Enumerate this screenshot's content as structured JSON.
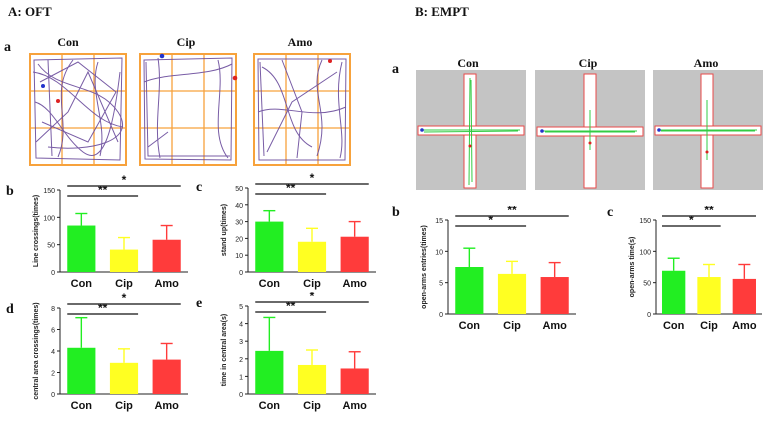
{
  "sections": {
    "oft_title": "A: OFT",
    "empt_title": "B: EMPT"
  },
  "panel_labels": {
    "oft_a": "a",
    "oft_b": "b",
    "oft_c": "c",
    "oft_d": "d",
    "oft_e": "e",
    "empt_a": "a",
    "empt_b": "b",
    "empt_c": "c"
  },
  "groups": [
    "Con",
    "Cip",
    "Amo"
  ],
  "colors": {
    "con": "#22ee22",
    "cip": "#ffff22",
    "amo": "#ff3b3b",
    "grid": "#f7a23c",
    "track": "#6a4b9c",
    "maze_bg": "#c4c4c4",
    "maze_path": "#33cc44",
    "maze_arm": "#e84a4a"
  },
  "chart_data": [
    {
      "id": "oft_b",
      "type": "bar",
      "ylabel": "Line crossings(times)",
      "categories": [
        "Con",
        "Cip",
        "Amo"
      ],
      "values": [
        85,
        41,
        59
      ],
      "errors": [
        22,
        22,
        26
      ],
      "ylim": [
        0,
        150
      ],
      "yticks": [
        "0",
        "50",
        "100",
        "150"
      ],
      "sig": [
        {
          "from": 0,
          "to": 1,
          "label": "**"
        },
        {
          "from": 0,
          "to": 2,
          "label": "*"
        }
      ]
    },
    {
      "id": "oft_c",
      "type": "bar",
      "ylabel": "stand up(times)",
      "categories": [
        "Con",
        "Cip",
        "Amo"
      ],
      "values": [
        30,
        18,
        21
      ],
      "errors": [
        6.5,
        8,
        9
      ],
      "ylim": [
        0,
        50
      ],
      "yticks": [
        "0",
        "10",
        "20",
        "30",
        "40",
        "50"
      ],
      "sig": [
        {
          "from": 0,
          "to": 1,
          "label": "**"
        },
        {
          "from": 0,
          "to": 2,
          "label": "*"
        }
      ]
    },
    {
      "id": "oft_d",
      "type": "bar",
      "ylabel": "central area crossings(times)",
      "categories": [
        "Con",
        "Cip",
        "Amo"
      ],
      "values": [
        4.3,
        2.9,
        3.2
      ],
      "errors": [
        2.8,
        1.3,
        1.5
      ],
      "ylim": [
        0,
        8
      ],
      "yticks": [
        "0",
        "2",
        "4",
        "6",
        "8"
      ],
      "sig": [
        {
          "from": 0,
          "to": 1,
          "label": "**"
        },
        {
          "from": 0,
          "to": 2,
          "label": "*"
        }
      ]
    },
    {
      "id": "oft_e",
      "type": "bar",
      "ylabel": "time in central area(s)",
      "categories": [
        "Con",
        "Cip",
        "Amo"
      ],
      "values": [
        2.45,
        1.65,
        1.45
      ],
      "errors": [
        1.9,
        0.85,
        0.95
      ],
      "ylim": [
        0,
        5
      ],
      "yticks": [
        "0",
        "1",
        "2",
        "3",
        "4",
        "5"
      ],
      "sig": [
        {
          "from": 0,
          "to": 1,
          "label": "**"
        },
        {
          "from": 0,
          "to": 2,
          "label": "*"
        }
      ]
    },
    {
      "id": "empt_b",
      "type": "bar",
      "ylabel": "open-arms entries(times)",
      "categories": [
        "Con",
        "Cip",
        "Amo"
      ],
      "values": [
        7.5,
        6.4,
        5.9
      ],
      "errors": [
        3.0,
        2.0,
        2.3
      ],
      "ylim": [
        0,
        15
      ],
      "yticks": [
        "0",
        "5",
        "10",
        "15"
      ],
      "sig": [
        {
          "from": 0,
          "to": 1,
          "label": "*"
        },
        {
          "from": 0,
          "to": 2,
          "label": "**"
        }
      ]
    },
    {
      "id": "empt_c",
      "type": "bar",
      "ylabel": "open-arms time(s)",
      "categories": [
        "Con",
        "Cip",
        "Amo"
      ],
      "values": [
        69,
        59,
        56
      ],
      "errors": [
        20,
        20,
        23
      ],
      "ylim": [
        0,
        150
      ],
      "yticks": [
        "0",
        "50",
        "100",
        "150"
      ],
      "sig": [
        {
          "from": 0,
          "to": 1,
          "label": "*"
        },
        {
          "from": 0,
          "to": 2,
          "label": "**"
        }
      ]
    }
  ]
}
